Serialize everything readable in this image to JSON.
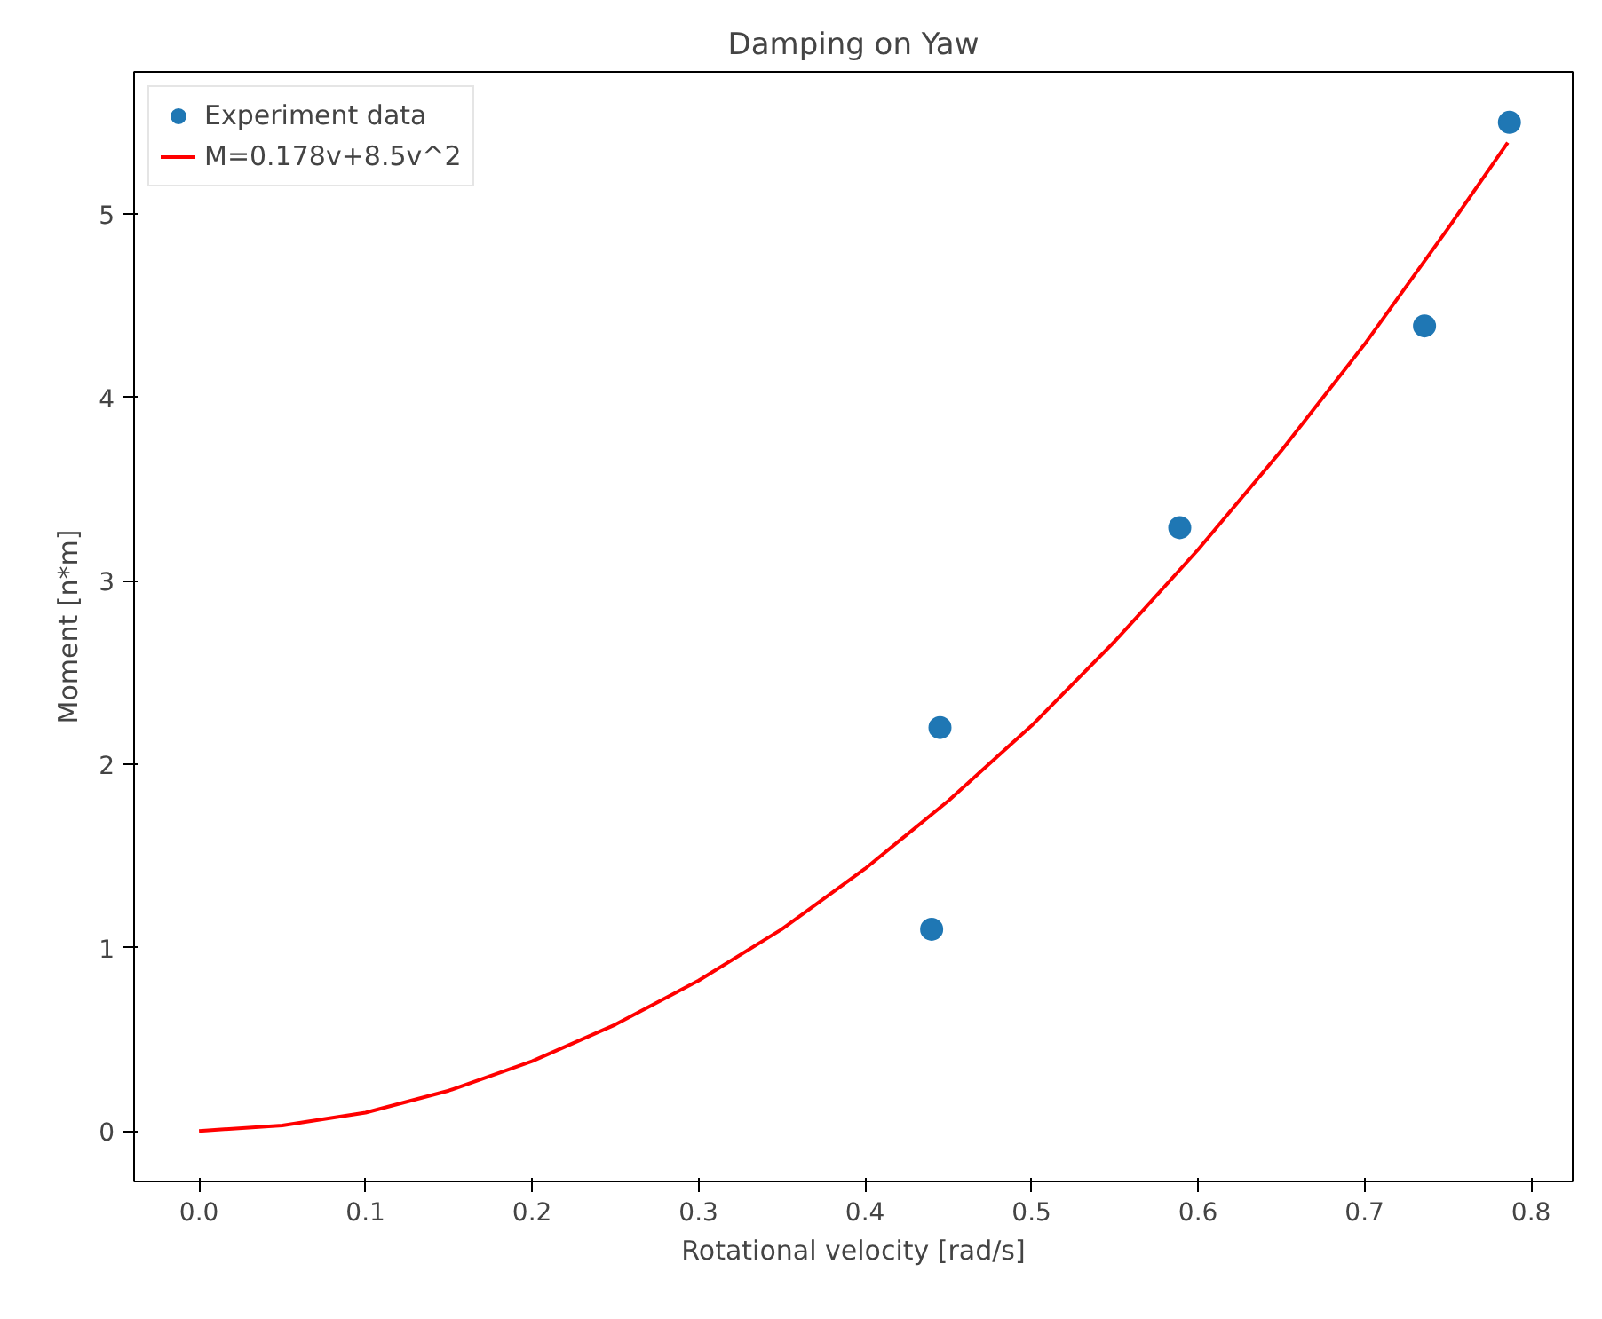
{
  "chart_data": {
    "type": "scatter",
    "title": "Damping on Yaw",
    "xlabel": "Rotational velocity [rad/s]",
    "ylabel": "Moment [n*m]",
    "xlim": [
      -0.039,
      0.825
    ],
    "ylim": [
      -0.275,
      5.775
    ],
    "xticks": [
      {
        "value": 0,
        "label": "0.0"
      },
      0.1,
      0.2,
      0.3,
      0.4,
      0.5,
      0.6,
      0.7,
      0.8
    ],
    "yticks": [
      0,
      1,
      2,
      3,
      4,
      5
    ],
    "grid": false,
    "legend": "top left",
    "series": [
      {
        "name": "Experiment data",
        "marker": "circle",
        "color": "#1f77b4",
        "x": [
          0.44,
          0.445,
          0.589,
          0.736,
          0.787
        ],
        "values": [
          1.1,
          2.2,
          3.29,
          4.39,
          5.5
        ]
      },
      {
        "name": "M=0.178v+8.5v^2",
        "type": "line",
        "marker": "none",
        "line_style": "solid",
        "color": "#ff0000",
        "x": [
          0,
          0.05,
          0.1,
          0.15,
          0.2,
          0.25,
          0.3,
          0.35,
          0.4,
          0.45,
          0.5,
          0.55,
          0.6,
          0.65,
          0.7,
          0.75,
          0.786
        ],
        "values": [
          0,
          0.03,
          0.1,
          0.22,
          0.38,
          0.58,
          0.82,
          1.1,
          1.43,
          1.8,
          2.21,
          2.67,
          3.17,
          3.71,
          4.29,
          4.92,
          5.39
        ]
      }
    ]
  }
}
